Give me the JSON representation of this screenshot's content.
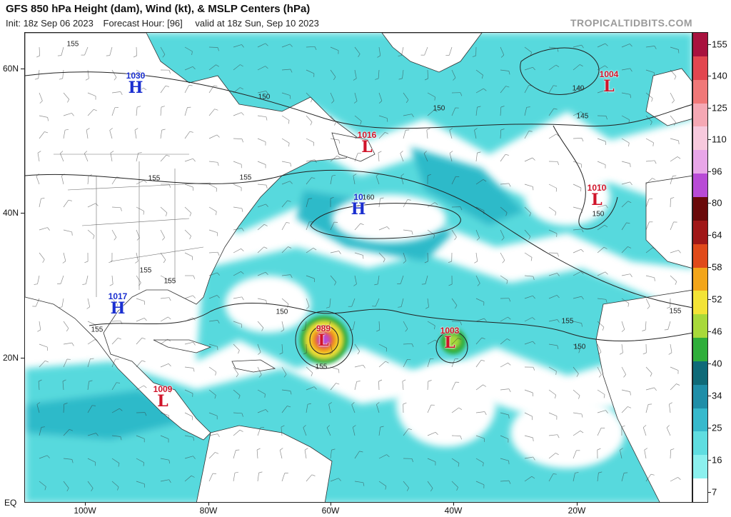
{
  "header": {
    "title": "GFS 850 hPa Height (dam), Wind (kt), & MSLP Centers (hPa)",
    "init": "Init: 18z Sep 06 2023",
    "forecast_hour": "Forecast Hour: [96]",
    "valid": "valid at 18z Sun, Sep 10 2023",
    "brand": "TROPICALTIDBITS.COM"
  },
  "axes": {
    "lat_labels": [
      "60N",
      "40N",
      "20N",
      "EQ"
    ],
    "lon_labels": [
      "100W",
      "80W",
      "60W",
      "40W",
      "20W"
    ]
  },
  "colorbar": {
    "labels": [
      "155",
      "140",
      "125",
      "110",
      "96",
      "80",
      "64",
      "58",
      "52",
      "46",
      "40",
      "34",
      "25",
      "16",
      "7"
    ],
    "colors": [
      "#a8123e",
      "#e2464f",
      "#f07878",
      "#f5a8b4",
      "#f7c9dd",
      "#e8a6e8",
      "#b84bd6",
      "#6a0a0a",
      "#a01818",
      "#e04a1a",
      "#f2a51a",
      "#f3e336",
      "#a8d93a",
      "#2fae3a",
      "#0f6a78",
      "#1f8ea8",
      "#36b9cc",
      "#5fdde0",
      "#8bf0ee",
      "#ffffff"
    ]
  },
  "pressure_centers": [
    {
      "type": "H",
      "value": "1030"
    },
    {
      "type": "L",
      "value": "1004"
    },
    {
      "type": "L",
      "value": "1016"
    },
    {
      "type": "H",
      "value": "10"
    },
    {
      "type": "L",
      "value": "1010"
    },
    {
      "type": "H",
      "value": "1017"
    },
    {
      "type": "L",
      "value": "989"
    },
    {
      "type": "L",
      "value": "1003"
    },
    {
      "type": "L",
      "value": "1009"
    }
  ],
  "contour_labels": [
    "155",
    "150",
    "150",
    "140",
    "145",
    "155",
    "155",
    "150",
    "160",
    "155",
    "155",
    "155",
    "150",
    "155",
    "155",
    "150",
    "155"
  ],
  "colors": {
    "wind_fill": "#4fd8dc",
    "wind_fill_strong": "#22b7c7",
    "land_border": "#333333",
    "high_center": "#1a2fd0",
    "low_center": "#d0142a"
  }
}
